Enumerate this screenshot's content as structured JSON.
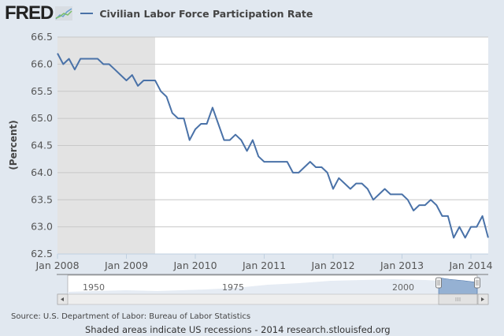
{
  "header": {
    "logo_text": "FRED",
    "logo_icon": "chart-icon",
    "legend_label": "Civilian Labor Force Participation Rate",
    "series_color": "#4a72a8"
  },
  "chart_data": {
    "type": "line",
    "title": "Civilian Labor Force Participation Rate",
    "xlabel": "",
    "ylabel": "(Percent)",
    "ylim": [
      62.5,
      66.5
    ],
    "yticks": [
      "66.5",
      "66.0",
      "65.5",
      "65.0",
      "64.5",
      "64.0",
      "63.5",
      "63.0",
      "62.5"
    ],
    "xticks": [
      "Jan 2008",
      "Jan 2009",
      "Jan 2010",
      "Jan 2011",
      "Jan 2012",
      "Jan 2013",
      "Jan 2014"
    ],
    "x_start": "2008-01",
    "x_end": "2014-04",
    "frequency": "monthly",
    "grid": true,
    "recession_shading": {
      "start": "2008-01",
      "end": "2009-06"
    },
    "series": [
      {
        "name": "Civilian Labor Force Participation Rate",
        "color": "#4a72a8",
        "values": [
          66.2,
          66.0,
          66.1,
          65.9,
          66.1,
          66.1,
          66.1,
          66.1,
          66.0,
          66.0,
          65.9,
          65.8,
          65.7,
          65.8,
          65.6,
          65.7,
          65.7,
          65.7,
          65.5,
          65.4,
          65.1,
          65.0,
          65.0,
          64.6,
          64.8,
          64.9,
          64.9,
          65.2,
          64.9,
          64.6,
          64.6,
          64.7,
          64.6,
          64.4,
          64.6,
          64.3,
          64.2,
          64.2,
          64.2,
          64.2,
          64.2,
          64.0,
          64.0,
          64.1,
          64.2,
          64.1,
          64.1,
          64.0,
          63.7,
          63.9,
          63.8,
          63.7,
          63.8,
          63.8,
          63.7,
          63.5,
          63.6,
          63.7,
          63.6,
          63.6,
          63.6,
          63.5,
          63.3,
          63.4,
          63.4,
          63.5,
          63.4,
          63.2,
          63.2,
          62.8,
          63.0,
          62.8,
          63.0,
          63.0,
          63.2,
          62.8
        ]
      }
    ]
  },
  "navigator": {
    "labels": [
      "1950",
      "1975",
      "2000"
    ]
  },
  "footer": {
    "source": "Source: U.S. Department of Labor: Bureau of Labor Statistics",
    "note": "Shaded areas indicate US recessions - 2014 research.stlouisfed.org"
  }
}
